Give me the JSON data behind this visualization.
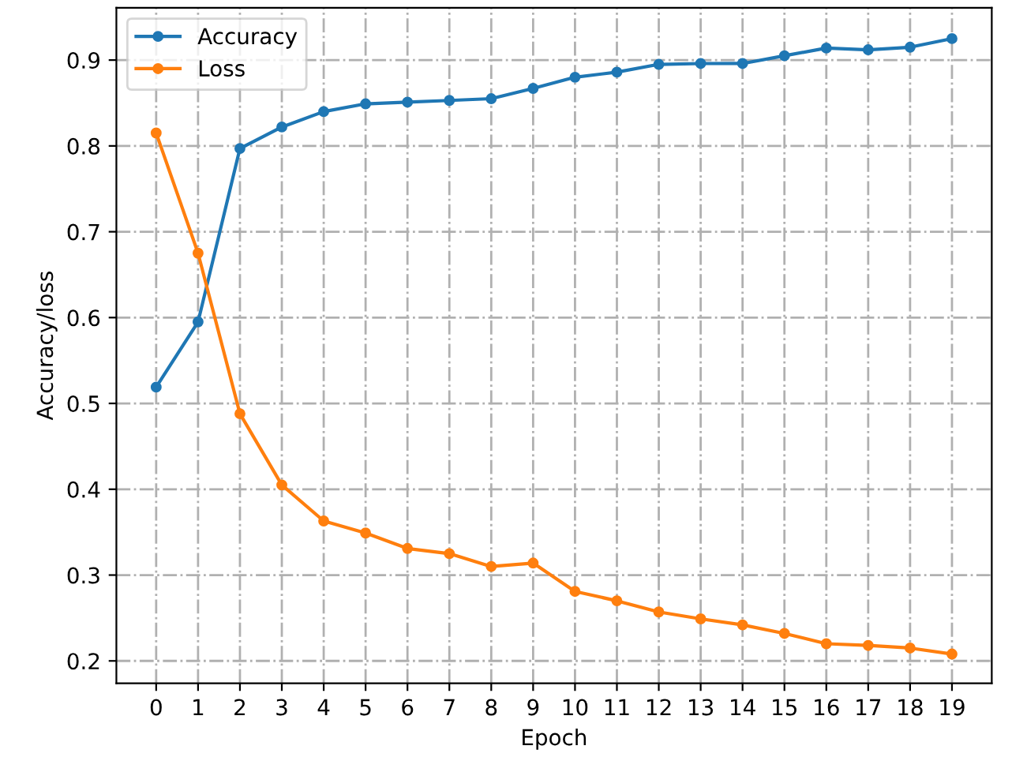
{
  "chart_data": {
    "type": "line",
    "xlabel": "Epoch",
    "ylabel": "Accuracy/loss",
    "x": [
      0,
      1,
      2,
      3,
      4,
      5,
      6,
      7,
      8,
      9,
      10,
      11,
      12,
      13,
      14,
      15,
      16,
      17,
      18,
      19
    ],
    "series": [
      {
        "name": "Accuracy",
        "color": "#1f77b4",
        "values": [
          0.519,
          0.595,
          0.797,
          0.822,
          0.84,
          0.849,
          0.851,
          0.853,
          0.855,
          0.867,
          0.88,
          0.886,
          0.895,
          0.896,
          0.896,
          0.905,
          0.914,
          0.912,
          0.915,
          0.925
        ]
      },
      {
        "name": "Loss",
        "color": "#ff7f0e",
        "values": [
          0.815,
          0.675,
          0.488,
          0.405,
          0.363,
          0.349,
          0.331,
          0.325,
          0.31,
          0.314,
          0.281,
          0.27,
          0.257,
          0.249,
          0.242,
          0.232,
          0.22,
          0.218,
          0.215,
          0.208
        ]
      }
    ],
    "xlim": [
      -0.95,
      19.95
    ],
    "xticks": [
      0,
      1,
      2,
      3,
      4,
      5,
      6,
      7,
      8,
      9,
      10,
      11,
      12,
      13,
      14,
      15,
      16,
      17,
      18,
      19
    ],
    "ylim": [
      0.174,
      0.961
    ],
    "yticks": [
      0.2,
      0.3,
      0.4,
      0.5,
      0.6,
      0.7,
      0.8,
      0.9
    ],
    "grid": true,
    "legend": "top left",
    "marker": "circle",
    "line_style": "solid"
  }
}
